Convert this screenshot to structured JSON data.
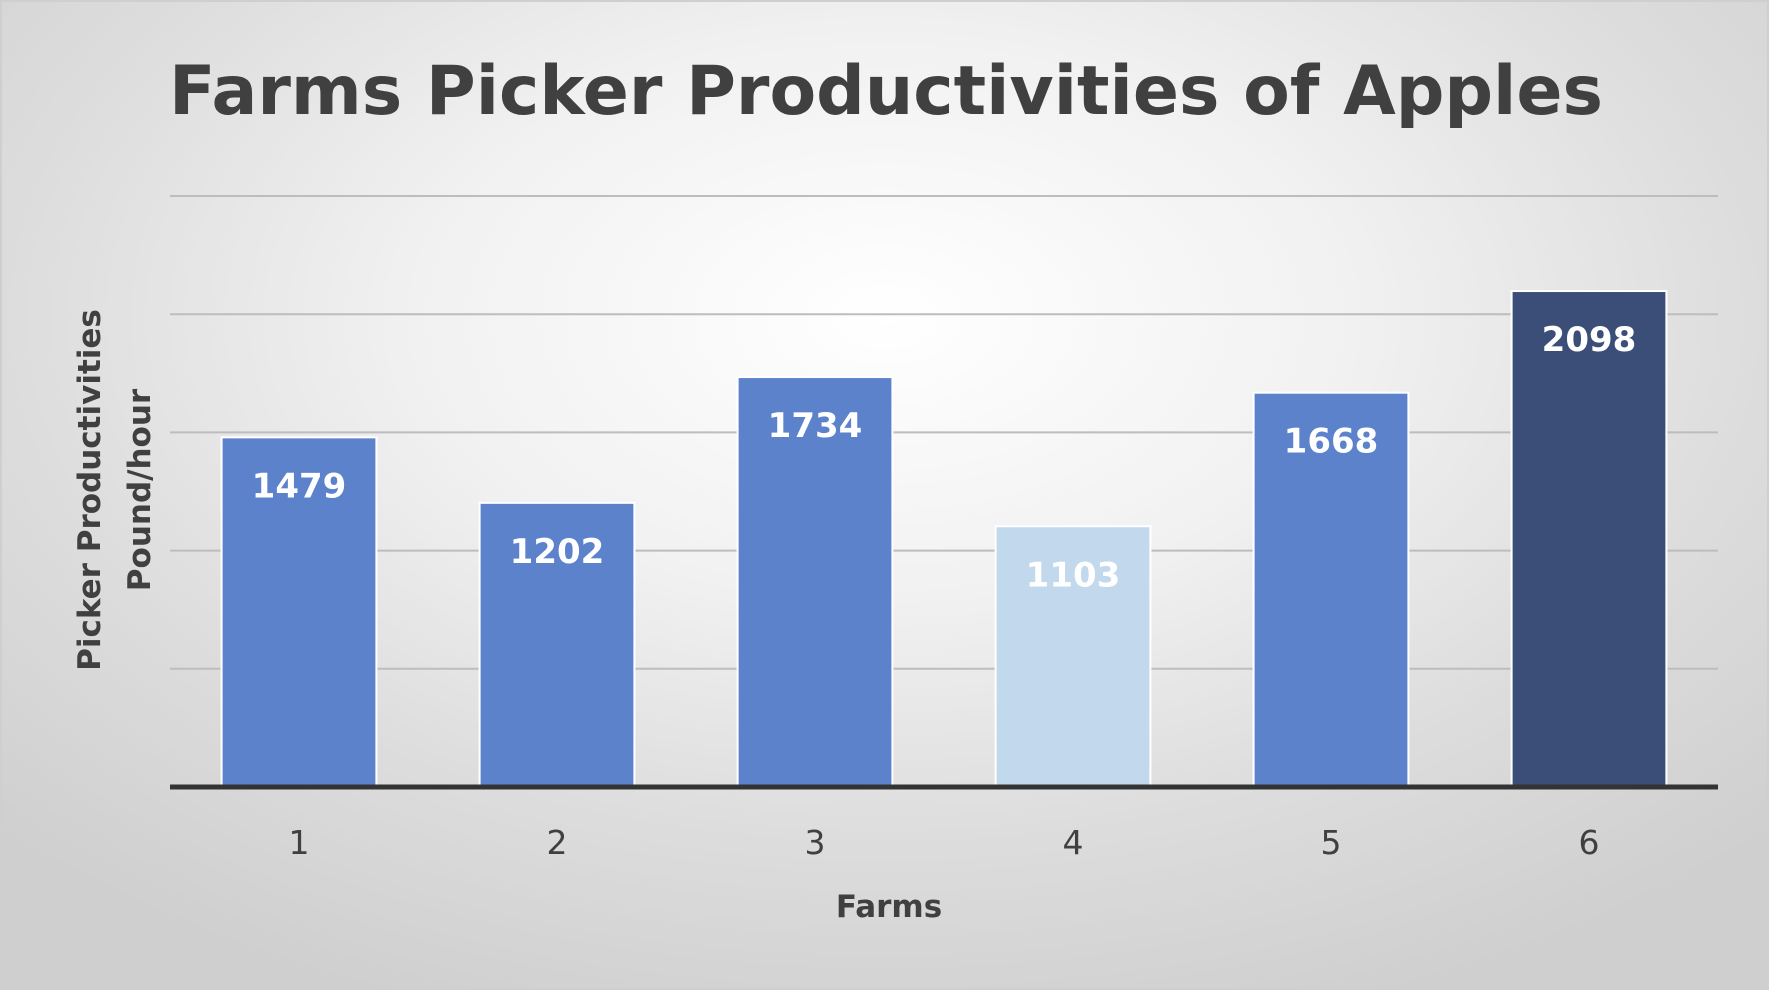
{
  "chart_data": {
    "type": "bar",
    "title": "Farms Picker Productivities of Apples",
    "xlabel": "Farms",
    "ylabel_lines": [
      "Picker Productivities",
      "Pound/hour"
    ],
    "categories": [
      "1",
      "2",
      "3",
      "4",
      "5",
      "6"
    ],
    "values": [
      1479,
      1202,
      1734,
      1103,
      1668,
      2098
    ],
    "data_labels": [
      "1479",
      "1202",
      "1734",
      "1103",
      "1668",
      "2098"
    ],
    "ylim": [
      0,
      2500
    ],
    "gridline_step": 500,
    "y_tick_labels_shown": false,
    "grid": true,
    "legend": "none",
    "bar_colors": [
      "#5b82cb",
      "#5b82cb",
      "#5b82cb",
      "#c2d8ed",
      "#5b82cb",
      "#3b4e78"
    ],
    "gridline_color": "#bdbdbd",
    "axis_color": "#333333"
  }
}
